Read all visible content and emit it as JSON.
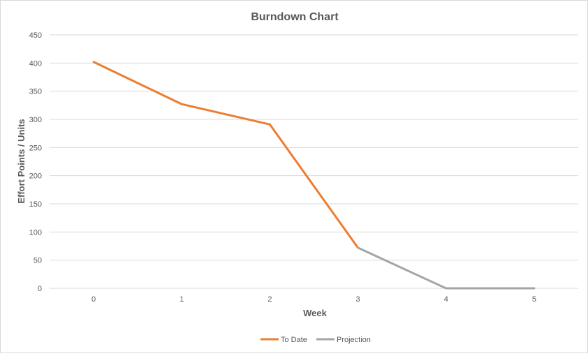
{
  "chart_data": {
    "type": "line",
    "title": "Burndown Chart",
    "xlabel": "Week",
    "ylabel": "Effort Points / Units",
    "x": [
      0,
      1,
      2,
      3,
      4,
      5
    ],
    "ylim": [
      0,
      450
    ],
    "yticks": [
      0,
      50,
      100,
      150,
      200,
      250,
      300,
      350,
      400,
      450
    ],
    "grid": true,
    "legend": "bottom",
    "series": [
      {
        "name": "To Date",
        "color": "#ed7d31",
        "points": [
          [
            0,
            402
          ],
          [
            1,
            327
          ],
          [
            2,
            291
          ],
          [
            3,
            72
          ]
        ]
      },
      {
        "name": "Projection",
        "color": "#a5a5a5",
        "points": [
          [
            3,
            72
          ],
          [
            4,
            0
          ],
          [
            5,
            0
          ]
        ]
      }
    ]
  }
}
